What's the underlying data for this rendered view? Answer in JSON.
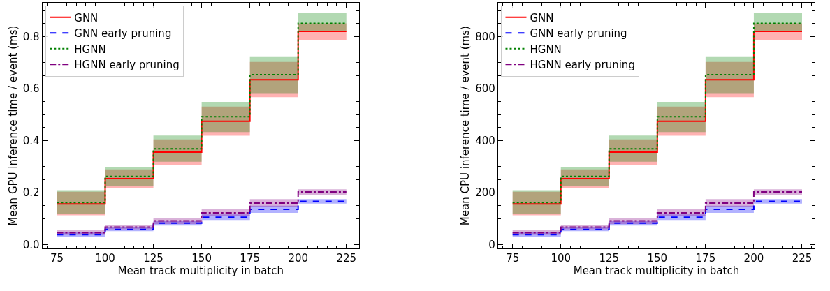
{
  "chart_data": [
    {
      "type": "step",
      "xlabel": "Mean track multiplicity in batch",
      "ylabel": "Mean GPU inference time / event (ms)",
      "x": [
        75,
        100,
        125,
        150,
        175,
        200,
        225
      ],
      "xlim": [
        67.5,
        231.5
      ],
      "xticks": [
        75,
        100,
        125,
        150,
        175,
        200,
        225
      ],
      "ylim": [
        -0.015,
        0.93
      ],
      "yticks": [
        {
          "value": 0,
          "label": "0.0"
        },
        0.2,
        0.4,
        0.6,
        0.8
      ],
      "legend": "top left",
      "marker": "none",
      "series": [
        {
          "name": "GNN",
          "color": "#ff0000",
          "line_style": "solid",
          "values": [
            0.157,
            0.254,
            0.356,
            0.475,
            0.634,
            0.82,
            0.82
          ],
          "lower": [
            0.113,
            0.217,
            0.308,
            0.419,
            0.567,
            0.785,
            0.785
          ],
          "upper": [
            0.204,
            0.29,
            0.405,
            0.531,
            0.703,
            0.851,
            0.851
          ]
        },
        {
          "name": "GNN early pruning",
          "color": "#0000ff",
          "line_style": "dashed",
          "values": [
            0.039,
            0.059,
            0.083,
            0.106,
            0.136,
            0.167,
            0.167
          ],
          "lower": [
            0.03,
            0.052,
            0.074,
            0.095,
            0.123,
            0.158,
            0.158
          ],
          "upper": [
            0.048,
            0.067,
            0.092,
            0.117,
            0.15,
            0.176,
            0.176
          ]
        },
        {
          "name": "HGNN",
          "color": "#008000",
          "line_style": "dotted",
          "values": [
            0.162,
            0.263,
            0.369,
            0.492,
            0.654,
            0.851,
            0.851
          ],
          "lower": [
            0.118,
            0.226,
            0.319,
            0.433,
            0.583,
            0.822,
            0.822
          ],
          "upper": [
            0.21,
            0.299,
            0.42,
            0.549,
            0.724,
            0.891,
            0.891
          ]
        },
        {
          "name": "HGNN early pruning",
          "color": "#800080",
          "line_style": "dashdot",
          "values": [
            0.046,
            0.068,
            0.092,
            0.123,
            0.16,
            0.203,
            0.203
          ],
          "lower": [
            0.038,
            0.06,
            0.08,
            0.11,
            0.145,
            0.192,
            0.192
          ],
          "upper": [
            0.056,
            0.077,
            0.104,
            0.136,
            0.176,
            0.213,
            0.213
          ]
        }
      ]
    },
    {
      "type": "step",
      "xlabel": "Mean track multiplicity in batch",
      "ylabel": "Mean CPU inference time / event (ms)",
      "x": [
        75,
        100,
        125,
        150,
        175,
        200,
        225
      ],
      "xlim": [
        67.5,
        231.5
      ],
      "xticks": [
        75,
        100,
        125,
        150,
        175,
        200,
        225
      ],
      "ylim": [
        -15,
        930
      ],
      "yticks": [
        0,
        200,
        400,
        600,
        800
      ],
      "legend": "top left",
      "marker": "none",
      "series": [
        {
          "name": "GNN",
          "color": "#ff0000",
          "line_style": "solid",
          "values": [
            157,
            254,
            356,
            475,
            634,
            820,
            820
          ],
          "lower": [
            113,
            217,
            308,
            419,
            567,
            785,
            785
          ],
          "upper": [
            204,
            290,
            405,
            531,
            703,
            851,
            851
          ]
        },
        {
          "name": "GNN early pruning",
          "color": "#0000ff",
          "line_style": "dashed",
          "values": [
            39,
            59,
            83,
            106,
            136,
            167,
            167
          ],
          "lower": [
            30,
            52,
            74,
            95,
            123,
            158,
            158
          ],
          "upper": [
            48,
            67,
            92,
            117,
            150,
            176,
            176
          ]
        },
        {
          "name": "HGNN",
          "color": "#008000",
          "line_style": "dotted",
          "values": [
            162,
            263,
            369,
            492,
            654,
            851,
            851
          ],
          "lower": [
            118,
            226,
            319,
            433,
            583,
            822,
            822
          ],
          "upper": [
            210,
            299,
            420,
            549,
            724,
            891,
            891
          ]
        },
        {
          "name": "HGNN early pruning",
          "color": "#800080",
          "line_style": "dashdot",
          "values": [
            46,
            68,
            92,
            123,
            160,
            203,
            203
          ],
          "lower": [
            38,
            60,
            80,
            110,
            145,
            192,
            192
          ],
          "upper": [
            56,
            77,
            104,
            136,
            176,
            213,
            213
          ]
        }
      ]
    }
  ]
}
